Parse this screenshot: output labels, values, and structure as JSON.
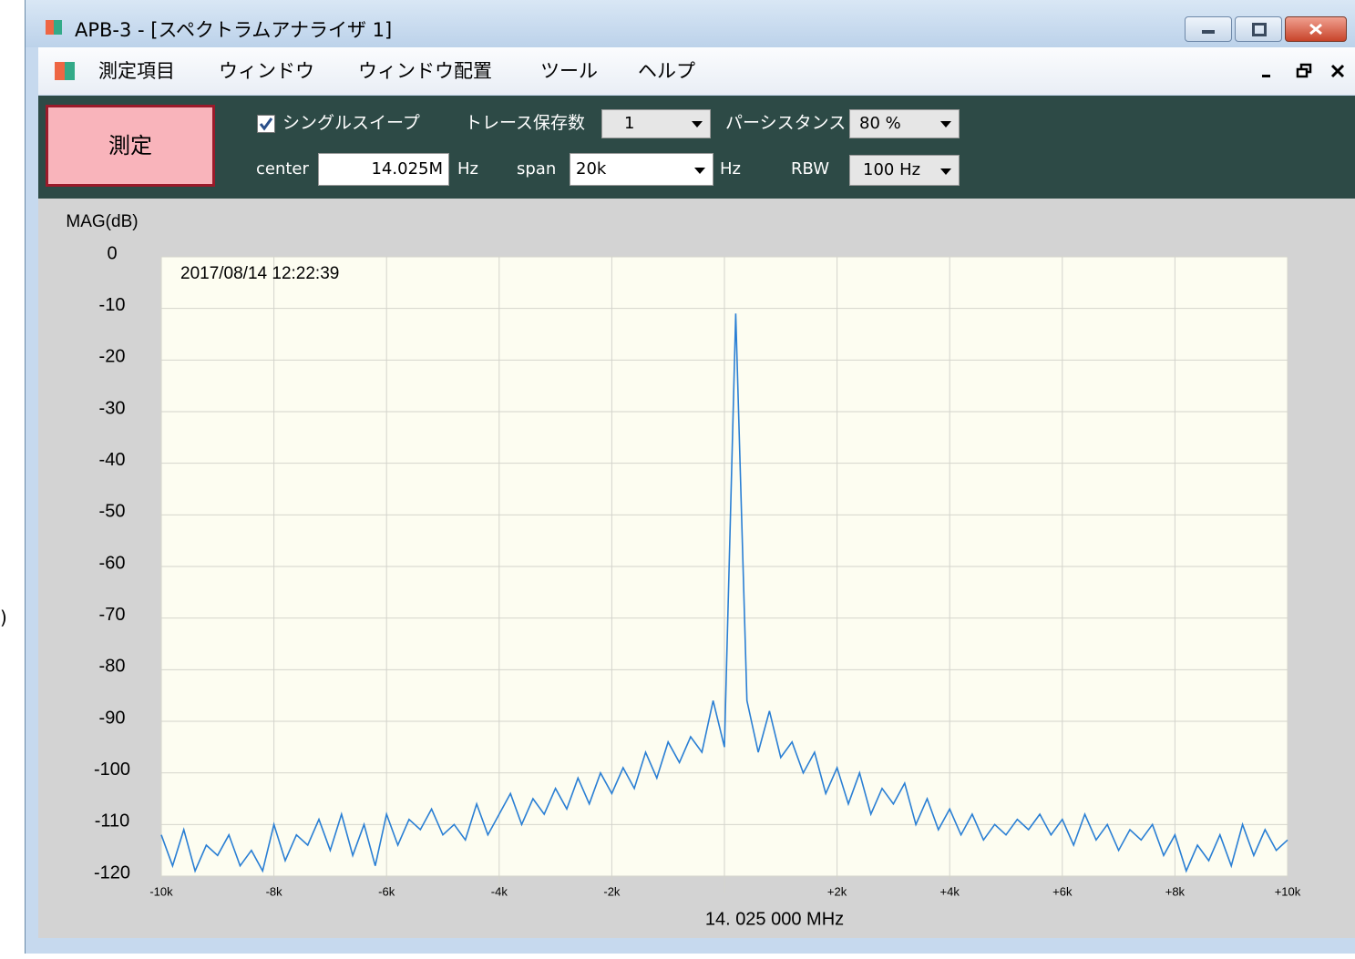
{
  "window": {
    "title": "APB-3 - [スペクトラムアナライザ 1]"
  },
  "menu": {
    "items": [
      "測定項目",
      "ウィンドウ",
      "ウィンドウ配置",
      "ツール",
      "ヘルプ"
    ]
  },
  "toolbar": {
    "measure_button": "測定",
    "single_sweep": "シングルスイープ",
    "trace_count_label": "トレース保存数",
    "trace_count": "1",
    "persistence_label": "パーシスタンス",
    "persistence": "80 %",
    "center_label": "center",
    "center": "14.025M",
    "center_unit": "Hz",
    "span_label": "span",
    "span": "20k",
    "span_unit": "Hz",
    "rbw_label": "RBW",
    "rbw": "100 Hz"
  },
  "edge_text": ")",
  "chart_data": {
    "type": "line",
    "ylabel": "MAG(dB)",
    "xlabel": "14. 025 000 MHz",
    "annotation": "2017/08/14 12:22:39",
    "color": "#2a7fd4",
    "grid": true,
    "xlim": [
      -10000,
      10000
    ],
    "ylim": [
      -120,
      0
    ],
    "xticks": [
      {
        "value": -10000,
        "label": "-10k"
      },
      {
        "value": -8000,
        "label": "-8k"
      },
      {
        "value": -6000,
        "label": "-6k"
      },
      {
        "value": -4000,
        "label": "-4k"
      },
      {
        "value": -2000,
        "label": "-2k"
      },
      {
        "value": 0,
        "label": null
      },
      {
        "value": 2000,
        "label": "+2k"
      },
      {
        "value": 4000,
        "label": "+4k"
      },
      {
        "value": 6000,
        "label": "+6k"
      },
      {
        "value": 8000,
        "label": "+8k"
      },
      {
        "value": 10000,
        "label": "+10k"
      }
    ],
    "yticks": [
      0,
      -10,
      -20,
      -30,
      -40,
      -50,
      -60,
      -70,
      -80,
      -90,
      -100,
      -110,
      -120
    ],
    "x": [
      -10000,
      -9800,
      -9600,
      -9400,
      -9200,
      -9000,
      -8800,
      -8600,
      -8400,
      -8200,
      -8000,
      -7800,
      -7600,
      -7400,
      -7200,
      -7000,
      -6800,
      -6600,
      -6400,
      -6200,
      -6000,
      -5800,
      -5600,
      -5400,
      -5200,
      -5000,
      -4800,
      -4600,
      -4400,
      -4200,
      -4000,
      -3800,
      -3600,
      -3400,
      -3200,
      -3000,
      -2800,
      -2600,
      -2400,
      -2200,
      -2000,
      -1800,
      -1600,
      -1400,
      -1200,
      -1000,
      -800,
      -600,
      -400,
      -200,
      0,
      200,
      400,
      600,
      800,
      1000,
      1200,
      1400,
      1600,
      1800,
      2000,
      2200,
      2400,
      2600,
      2800,
      3000,
      3200,
      3400,
      3600,
      3800,
      4000,
      4200,
      4400,
      4600,
      4800,
      5000,
      5200,
      5400,
      5600,
      5800,
      6000,
      6200,
      6400,
      6600,
      6800,
      7000,
      7200,
      7400,
      7600,
      7800,
      8000,
      8200,
      8400,
      8600,
      8800,
      9000,
      9200,
      9400,
      9600,
      9800,
      10000
    ],
    "values": [
      -112,
      -118,
      -111,
      -119,
      -114,
      -116,
      -112,
      -118,
      -115,
      -119,
      -110,
      -117,
      -112,
      -114,
      -109,
      -115,
      -108,
      -116,
      -110,
      -118,
      -108,
      -114,
      -109,
      -111,
      -107,
      -112,
      -110,
      -113,
      -106,
      -112,
      -108,
      -104,
      -110,
      -105,
      -108,
      -103,
      -107,
      -101,
      -106,
      -100,
      -104,
      -99,
      -103,
      -96,
      -101,
      -94,
      -98,
      -93,
      -96,
      -86,
      -95,
      -11,
      -86,
      -96,
      -88,
      -97,
      -94,
      -100,
      -96,
      -104,
      -99,
      -106,
      -100,
      -108,
      -103,
      -106,
      -102,
      -110,
      -105,
      -111,
      -107,
      -112,
      -108,
      -113,
      -110,
      -112,
      -109,
      -111,
      -108,
      -112,
      -109,
      -114,
      -108,
      -113,
      -110,
      -115,
      -111,
      -113,
      -110,
      -116,
      -112,
      -119,
      -114,
      -117,
      -112,
      -118,
      -110,
      -116,
      -111,
      -115,
      -113
    ]
  }
}
